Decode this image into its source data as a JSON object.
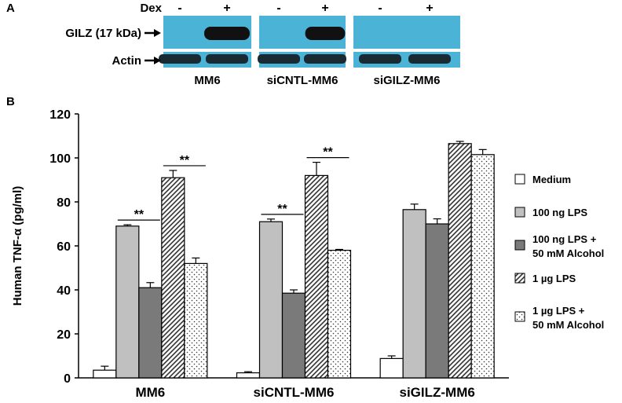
{
  "panel_a": {
    "letter": "A",
    "dex_label": "Dex",
    "lanes": [
      "-",
      "+",
      "-",
      "+",
      "-",
      "+"
    ],
    "band_labels": [
      "GILZ (17 kDa)",
      "Actin"
    ],
    "cell_lines": [
      "MM6",
      "siCNTL-MM6",
      "siGILZ-MM6"
    ],
    "gilz_band_intensity": [
      0,
      1,
      0,
      0.85,
      0,
      0
    ],
    "blot_color": "#4bb3d6"
  },
  "panel_b": {
    "letter": "B"
  },
  "chart_data": {
    "type": "bar",
    "ylabel": "Human TNF-α (pg/ml)",
    "ylim": [
      0,
      120
    ],
    "yticks": [
      0,
      20,
      40,
      60,
      80,
      100,
      120
    ],
    "categories": [
      "MM6",
      "siCNTL-MM6",
      "siGILZ-MM6"
    ],
    "series": [
      {
        "name": "Medium",
        "values": [
          3.5,
          2.3,
          8.8
        ],
        "errors": [
          1.8,
          0.5,
          1.2
        ],
        "pattern": "white"
      },
      {
        "name": "100 ng LPS",
        "values": [
          69,
          71,
          76.5
        ],
        "errors": [
          0.6,
          1.2,
          2.5
        ],
        "pattern": "lightgray"
      },
      {
        "name": "100 ng LPS + 50 mM Alcohol",
        "values": [
          41,
          38.5,
          70
        ],
        "errors": [
          2.3,
          1.5,
          2.3
        ],
        "pattern": "darkgray"
      },
      {
        "name": "1 µg LPS",
        "values": [
          91,
          92,
          106.5
        ],
        "errors": [
          3.3,
          6,
          1
        ],
        "pattern": "hatch"
      },
      {
        "name": "1 µg LPS + 50 mM Alcohol",
        "values": [
          52,
          58,
          101.5
        ],
        "errors": [
          2.5,
          0.4,
          2.3
        ],
        "pattern": "dots"
      }
    ],
    "legend_lines": [
      [
        "Medium"
      ],
      [
        "100 ng LPS"
      ],
      [
        "100 ng LPS +",
        "50 mM Alcohol"
      ],
      [
        "1 µg LPS"
      ],
      [
        "1 µg LPS  +",
        "50 mM Alcohol"
      ]
    ],
    "significance": [
      {
        "group": 0,
        "from": 1,
        "to": 2,
        "label": "**"
      },
      {
        "group": 0,
        "from": 3,
        "to": 4,
        "label": "**"
      },
      {
        "group": 1,
        "from": 1,
        "to": 2,
        "label": "**"
      },
      {
        "group": 1,
        "from": 3,
        "to": 4,
        "label": "**"
      }
    ],
    "legend_placement": "right",
    "grid": false
  }
}
